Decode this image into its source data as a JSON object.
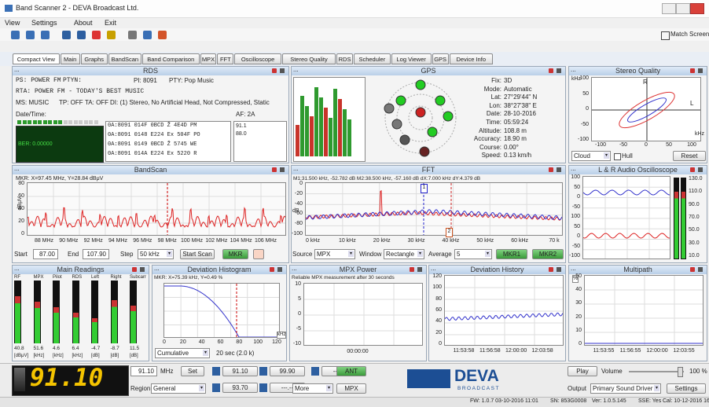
{
  "window": {
    "title": "Band Scanner 2 - DEVA Broadcast Ltd."
  },
  "menu": [
    "View",
    "Settings",
    "About",
    "Exit"
  ],
  "toolbar": {
    "match_screen": "Match Screen"
  },
  "tabs": [
    "Compact View",
    "Main",
    "Graphs",
    "BandScan",
    "Band Comparison",
    "MPX",
    "FFT",
    "Oscilloscope",
    "Stereo Quality",
    "RDS",
    "Scheduler",
    "Log Viewer",
    "GPS",
    "Device Info"
  ],
  "rds": {
    "title": "RDS",
    "ps": "PS: POWER FM",
    "ptyn": "PTYN:",
    "pi": "PI: 8091",
    "pty": "PTY: Pop Music",
    "rta": "RTA: POWER FM - TODAY'S BEST MUSIC",
    "ms": "MS: MUSIC",
    "tp": "TP: OFF",
    "ta": "TA: OFF",
    "di": "DI: (1) Stereo, No Artificial Head, Not Compressed, Static",
    "date": "Date/Time:",
    "af": "AF: 2A",
    "ber": "BER: 0.00000",
    "groups": [
      "0A:8091 014F 0BCD Ž 4E4D PM",
      "0A:8091 0148 E224 Ex 504F PO",
      "0A:8091 0149 0BCD Ž 5745 WE",
      "0A:8091 014A E224 Ex 5220 R"
    ],
    "af_list": [
      "91.1",
      "88.0"
    ]
  },
  "gps": {
    "title": "GPS",
    "fields": [
      [
        "Fix:",
        "3D"
      ],
      [
        "Mode:",
        "Automatic"
      ],
      [
        "Lat:",
        "27°29'44\" N"
      ],
      [
        "Lon:",
        "38°27'38\" E"
      ],
      [
        "Date:",
        "28-10-2016"
      ],
      [
        "Time:",
        "05:59:24"
      ],
      [
        "Altitude:",
        "108.8 m"
      ],
      [
        "Accuracy:",
        "18.90 m"
      ],
      [
        "Course:",
        "0.00°"
      ],
      [
        "Speed:",
        "0.13 km/h"
      ]
    ]
  },
  "stereo": {
    "title": "Stereo Quality",
    "unit": "kHz",
    "yticks": [
      "100",
      "50",
      "0",
      "-50",
      "-100"
    ],
    "xticks": [
      "-100",
      "-50",
      "0",
      "50",
      "100"
    ],
    "r": "R",
    "l": "L",
    "xunit": "kHz",
    "mode": "Cloud",
    "hull": "Hull",
    "reset": "Reset"
  },
  "bandscan": {
    "title": "BandScan",
    "marker": "MKR: X=97.45 MHz, Y=28.84 dBμV",
    "ylabel": "dBμV",
    "yticks": [
      "80",
      "60",
      "40",
      "20",
      "0"
    ],
    "xticks": [
      "88 MHz",
      "90 MHz",
      "92 MHz",
      "94 MHz",
      "96 MHz",
      "98 MHz",
      "100 MHz",
      "102 MHz",
      "104 MHz",
      "106 MHz"
    ],
    "start": "Start",
    "start_value": "87.00",
    "end": "End",
    "end_value": "107.90",
    "step": "Step",
    "step_value": "50 kHz",
    "scan": "Start Scan",
    "mkr": "MKR"
  },
  "fft": {
    "title": "FFT",
    "marker": "M1:31.500 kHz, -52.782 dB   M2:38.500 kHz, -57.160 dB   dX:7.000 kHz dY:4.379 dB",
    "ylabel": "dB",
    "yticks": [
      "0",
      "-20",
      "-40",
      "-60",
      "-80",
      "-100"
    ],
    "xticks": [
      "0 kHz",
      "10 kHz",
      "20 kHz",
      "30 kHz",
      "40 kHz",
      "50 kHz",
      "60 kHz",
      "70 k"
    ],
    "m1": "1",
    "m2": "2",
    "source": "Source",
    "source_value": "MPX",
    "window": "Window",
    "window_value": "Rectangle",
    "average": "Average",
    "average_value": "5",
    "mkr1": "MKR1",
    "mkr2": "MKR2"
  },
  "oscilloscope": {
    "title": "L & R Audio Oscilloscope",
    "yticks": [
      "100",
      "50",
      "0",
      "-50",
      "100",
      "50",
      "0",
      "-50",
      "-100"
    ],
    "scale": [
      "130.0",
      "110.0",
      "90.0",
      "70.0",
      "50.0",
      "30.0",
      "10.0"
    ]
  },
  "readings": {
    "title": "Main Readings",
    "names": [
      "RF",
      "MPX",
      "Pilot",
      "RDS",
      "Left",
      "Right",
      "Subcarr"
    ],
    "values": [
      "40.8",
      "51.6",
      "4.6",
      "6.4",
      "-4.7",
      "-8.7",
      "11.5"
    ],
    "units": [
      "[dBμV]",
      "[kHz]",
      "[kHz]",
      "[kHz]",
      "[dB]",
      "[dB]",
      "[dB]"
    ]
  },
  "histogram": {
    "title": "Deviation Histogram",
    "marker": "MKR: X=75.39 kHz, Y=0.49 %",
    "unit": "%",
    "xticks": [
      "0",
      "20",
      "40",
      "60",
      "80",
      "100",
      "120"
    ],
    "xunit": "kHz",
    "mode": "Cumulative",
    "period": "20 sec (2.0 k)"
  },
  "mpx_power": {
    "title": "MPX Power",
    "note": "Reliable MPX measurement after 30 seconds",
    "yticks": [
      "10",
      "5",
      "0",
      "-5",
      "-10"
    ],
    "xtick": "00:00:00"
  },
  "dev_history": {
    "title": "Deviation History",
    "unit": "kHz",
    "yticks": [
      "120",
      "100",
      "80",
      "60",
      "40",
      "20",
      "0"
    ],
    "xticks": [
      "11:53:58",
      "11:56:58",
      "12:00:00",
      "12:03:58"
    ]
  },
  "multipath": {
    "title": "Multipath",
    "unit": "%",
    "yticks": [
      "50",
      "40",
      "30",
      "20",
      "10",
      "0"
    ],
    "xticks": [
      "11:53:55",
      "11:56:55",
      "12:00:00",
      "12:03:55"
    ]
  },
  "controls": {
    "frequency": "91.10",
    "freq_input": "91.10",
    "mhz": "MHz",
    "set": "Set",
    "presets": [
      "91.10",
      "99.90",
      "---.--",
      "93.70",
      "---.--"
    ],
    "ant": "ANT",
    "region": "Region",
    "region_value": "General",
    "more": "More",
    "mpx": "MPX",
    "logo": "DEVA",
    "logo_sub": "BROADCAST",
    "play": "Play",
    "volume": "Volume",
    "volume_value": "100 %",
    "output": "Output",
    "output_value": "Primary Sound Driver",
    "settings": "Settings"
  },
  "status": [
    "FW: 1.0.7 03-10-2016 11:01",
    "SN: 853G0008",
    "Ver: 1.0.5.145",
    "SSE: Yes",
    "Cal: 10-12-2016 16:25"
  ]
}
